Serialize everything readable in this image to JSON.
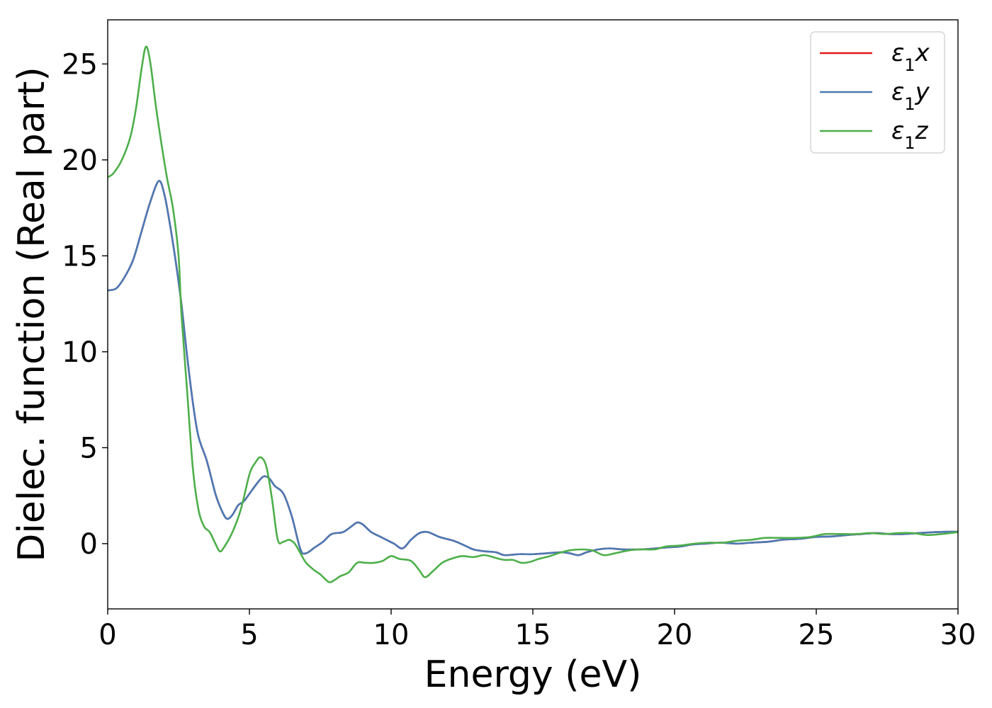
{
  "chart_data": {
    "type": "line",
    "title": "",
    "xlabel": "Energy (eV)",
    "ylabel": "Dielec. function (Real part)",
    "xlim": [
      0,
      30
    ],
    "ylim": [
      -3.4,
      27.3
    ],
    "xticks": [
      0,
      5,
      10,
      15,
      20,
      25,
      30
    ],
    "yticks": [
      0,
      5,
      10,
      15,
      20,
      25
    ],
    "grid": false,
    "legend": "top-right",
    "series": [
      {
        "name": "ε1x",
        "label_base": "ε",
        "label_sub": "1",
        "label_var": "x",
        "color": "#e41a1c",
        "points": [
          [
            0,
            13.2
          ],
          [
            0.3,
            13.3
          ],
          [
            0.6,
            13.9
          ],
          [
            0.9,
            14.8
          ],
          [
            1.2,
            16.3
          ],
          [
            1.5,
            17.8
          ],
          [
            1.8,
            18.9
          ],
          [
            2.0,
            18.2
          ],
          [
            2.2,
            16.6
          ],
          [
            2.4,
            14.7
          ],
          [
            2.6,
            12.5
          ],
          [
            2.8,
            9.8
          ],
          [
            3.0,
            7.4
          ],
          [
            3.2,
            5.6
          ],
          [
            3.5,
            4.3
          ],
          [
            3.8,
            2.6
          ],
          [
            4.0,
            1.8
          ],
          [
            4.2,
            1.3
          ],
          [
            4.4,
            1.5
          ],
          [
            4.6,
            2.0
          ],
          [
            4.8,
            2.2
          ],
          [
            5.0,
            2.6
          ],
          [
            5.3,
            3.2
          ],
          [
            5.5,
            3.5
          ],
          [
            5.7,
            3.4
          ],
          [
            5.9,
            3.0
          ],
          [
            6.2,
            2.6
          ],
          [
            6.5,
            1.4
          ],
          [
            6.8,
            -0.3
          ],
          [
            7.0,
            -0.5
          ],
          [
            7.3,
            -0.2
          ],
          [
            7.6,
            0.1
          ],
          [
            7.9,
            0.5
          ],
          [
            8.3,
            0.6
          ],
          [
            8.6,
            0.9
          ],
          [
            8.8,
            1.1
          ],
          [
            9.0,
            1.0
          ],
          [
            9.3,
            0.6
          ],
          [
            9.7,
            0.3
          ],
          [
            10.1,
            0.0
          ],
          [
            10.4,
            -0.25
          ],
          [
            10.7,
            0.2
          ],
          [
            11.0,
            0.55
          ],
          [
            11.3,
            0.6
          ],
          [
            11.7,
            0.35
          ],
          [
            12.2,
            0.15
          ],
          [
            12.6,
            -0.1
          ],
          [
            12.9,
            -0.3
          ],
          [
            13.3,
            -0.4
          ],
          [
            13.7,
            -0.45
          ],
          [
            14.0,
            -0.6
          ],
          [
            14.5,
            -0.55
          ],
          [
            15.0,
            -0.55
          ],
          [
            15.5,
            -0.5
          ],
          [
            16.0,
            -0.45
          ],
          [
            16.3,
            -0.5
          ],
          [
            16.6,
            -0.6
          ],
          [
            16.9,
            -0.45
          ],
          [
            17.3,
            -0.3
          ],
          [
            17.7,
            -0.25
          ],
          [
            18.2,
            -0.3
          ],
          [
            18.8,
            -0.3
          ],
          [
            19.3,
            -0.25
          ],
          [
            19.7,
            -0.2
          ],
          [
            20.2,
            -0.15
          ],
          [
            20.6,
            -0.05
          ],
          [
            21.1,
            0.0
          ],
          [
            21.6,
            0.05
          ],
          [
            22.2,
            0.0
          ],
          [
            22.7,
            0.05
          ],
          [
            23.3,
            0.1
          ],
          [
            23.8,
            0.2
          ],
          [
            24.4,
            0.25
          ],
          [
            25.0,
            0.35
          ],
          [
            25.6,
            0.38
          ],
          [
            26.1,
            0.45
          ],
          [
            26.6,
            0.5
          ],
          [
            27.1,
            0.55
          ],
          [
            27.6,
            0.5
          ],
          [
            28.1,
            0.5
          ],
          [
            28.6,
            0.55
          ],
          [
            29.2,
            0.6
          ],
          [
            29.6,
            0.62
          ],
          [
            30,
            0.62
          ]
        ]
      },
      {
        "name": "ε1y",
        "label_base": "ε",
        "label_sub": "1",
        "label_var": "y",
        "color": "#4a7ab5",
        "points": [
          [
            0,
            13.2
          ],
          [
            0.3,
            13.3
          ],
          [
            0.6,
            13.9
          ],
          [
            0.9,
            14.8
          ],
          [
            1.2,
            16.3
          ],
          [
            1.5,
            17.8
          ],
          [
            1.8,
            18.9
          ],
          [
            2.0,
            18.2
          ],
          [
            2.2,
            16.6
          ],
          [
            2.4,
            14.7
          ],
          [
            2.6,
            12.5
          ],
          [
            2.8,
            9.8
          ],
          [
            3.0,
            7.4
          ],
          [
            3.2,
            5.6
          ],
          [
            3.5,
            4.3
          ],
          [
            3.8,
            2.6
          ],
          [
            4.0,
            1.8
          ],
          [
            4.2,
            1.3
          ],
          [
            4.4,
            1.5
          ],
          [
            4.6,
            2.0
          ],
          [
            4.8,
            2.2
          ],
          [
            5.0,
            2.6
          ],
          [
            5.3,
            3.2
          ],
          [
            5.5,
            3.5
          ],
          [
            5.7,
            3.4
          ],
          [
            5.9,
            3.0
          ],
          [
            6.2,
            2.6
          ],
          [
            6.5,
            1.4
          ],
          [
            6.8,
            -0.3
          ],
          [
            7.0,
            -0.5
          ],
          [
            7.3,
            -0.2
          ],
          [
            7.6,
            0.1
          ],
          [
            7.9,
            0.5
          ],
          [
            8.3,
            0.6
          ],
          [
            8.6,
            0.9
          ],
          [
            8.8,
            1.1
          ],
          [
            9.0,
            1.0
          ],
          [
            9.3,
            0.6
          ],
          [
            9.7,
            0.3
          ],
          [
            10.1,
            0.0
          ],
          [
            10.4,
            -0.25
          ],
          [
            10.7,
            0.2
          ],
          [
            11.0,
            0.55
          ],
          [
            11.3,
            0.6
          ],
          [
            11.7,
            0.35
          ],
          [
            12.2,
            0.15
          ],
          [
            12.6,
            -0.1
          ],
          [
            12.9,
            -0.3
          ],
          [
            13.3,
            -0.4
          ],
          [
            13.7,
            -0.45
          ],
          [
            14.0,
            -0.6
          ],
          [
            14.5,
            -0.55
          ],
          [
            15.0,
            -0.55
          ],
          [
            15.5,
            -0.5
          ],
          [
            16.0,
            -0.45
          ],
          [
            16.3,
            -0.5
          ],
          [
            16.6,
            -0.6
          ],
          [
            16.9,
            -0.45
          ],
          [
            17.3,
            -0.3
          ],
          [
            17.7,
            -0.25
          ],
          [
            18.2,
            -0.3
          ],
          [
            18.8,
            -0.3
          ],
          [
            19.3,
            -0.25
          ],
          [
            19.7,
            -0.2
          ],
          [
            20.2,
            -0.15
          ],
          [
            20.6,
            -0.05
          ],
          [
            21.1,
            0.0
          ],
          [
            21.6,
            0.05
          ],
          [
            22.2,
            0.0
          ],
          [
            22.7,
            0.05
          ],
          [
            23.3,
            0.1
          ],
          [
            23.8,
            0.2
          ],
          [
            24.4,
            0.25
          ],
          [
            25.0,
            0.35
          ],
          [
            25.6,
            0.38
          ],
          [
            26.1,
            0.45
          ],
          [
            26.6,
            0.5
          ],
          [
            27.1,
            0.55
          ],
          [
            27.6,
            0.5
          ],
          [
            28.1,
            0.5
          ],
          [
            28.6,
            0.55
          ],
          [
            29.2,
            0.6
          ],
          [
            29.6,
            0.62
          ],
          [
            30,
            0.62
          ]
        ]
      },
      {
        "name": "ε1z",
        "label_base": "ε",
        "label_sub": "1",
        "label_var": "z",
        "color": "#4daf4a",
        "points": [
          [
            0,
            19.1
          ],
          [
            0.2,
            19.3
          ],
          [
            0.5,
            20.0
          ],
          [
            0.8,
            21.2
          ],
          [
            1.0,
            22.7
          ],
          [
            1.2,
            24.8
          ],
          [
            1.35,
            25.9
          ],
          [
            1.5,
            25.1
          ],
          [
            1.7,
            22.8
          ],
          [
            1.9,
            20.8
          ],
          [
            2.1,
            19.0
          ],
          [
            2.3,
            17.5
          ],
          [
            2.5,
            15.0
          ],
          [
            2.6,
            12.0
          ],
          [
            2.8,
            8.0
          ],
          [
            3.0,
            4.0
          ],
          [
            3.2,
            1.8
          ],
          [
            3.4,
            0.9
          ],
          [
            3.6,
            0.6
          ],
          [
            3.8,
            0.0
          ],
          [
            3.95,
            -0.4
          ],
          [
            4.1,
            -0.2
          ],
          [
            4.4,
            0.6
          ],
          [
            4.7,
            1.8
          ],
          [
            5.0,
            3.6
          ],
          [
            5.2,
            4.2
          ],
          [
            5.4,
            4.5
          ],
          [
            5.6,
            4.0
          ],
          [
            5.8,
            2.3
          ],
          [
            6.0,
            0.2
          ],
          [
            6.2,
            0.1
          ],
          [
            6.4,
            0.2
          ],
          [
            6.6,
            0.0
          ],
          [
            6.8,
            -0.5
          ],
          [
            7.0,
            -1.0
          ],
          [
            7.3,
            -1.4
          ],
          [
            7.5,
            -1.6
          ],
          [
            7.8,
            -2.0
          ],
          [
            8.0,
            -1.9
          ],
          [
            8.2,
            -1.7
          ],
          [
            8.5,
            -1.5
          ],
          [
            8.8,
            -1.0
          ],
          [
            9.1,
            -1.0
          ],
          [
            9.4,
            -1.0
          ],
          [
            9.7,
            -0.9
          ],
          [
            10.0,
            -0.65
          ],
          [
            10.3,
            -0.8
          ],
          [
            10.7,
            -0.9
          ],
          [
            11.0,
            -1.4
          ],
          [
            11.2,
            -1.75
          ],
          [
            11.5,
            -1.4
          ],
          [
            11.8,
            -1.0
          ],
          [
            12.1,
            -0.8
          ],
          [
            12.5,
            -0.65
          ],
          [
            12.9,
            -0.7
          ],
          [
            13.3,
            -0.6
          ],
          [
            13.7,
            -0.75
          ],
          [
            14.0,
            -0.85
          ],
          [
            14.3,
            -0.85
          ],
          [
            14.6,
            -1.0
          ],
          [
            14.9,
            -0.95
          ],
          [
            15.2,
            -0.8
          ],
          [
            15.6,
            -0.65
          ],
          [
            15.9,
            -0.5
          ],
          [
            16.3,
            -0.35
          ],
          [
            16.7,
            -0.3
          ],
          [
            17.1,
            -0.35
          ],
          [
            17.5,
            -0.6
          ],
          [
            17.9,
            -0.5
          ],
          [
            18.4,
            -0.35
          ],
          [
            18.8,
            -0.3
          ],
          [
            19.3,
            -0.3
          ],
          [
            19.7,
            -0.15
          ],
          [
            20.2,
            -0.1
          ],
          [
            20.7,
            0.0
          ],
          [
            21.2,
            0.05
          ],
          [
            21.7,
            0.05
          ],
          [
            22.2,
            0.15
          ],
          [
            22.7,
            0.2
          ],
          [
            23.2,
            0.3
          ],
          [
            23.7,
            0.3
          ],
          [
            24.3,
            0.3
          ],
          [
            24.8,
            0.35
          ],
          [
            25.3,
            0.5
          ],
          [
            25.8,
            0.5
          ],
          [
            26.4,
            0.5
          ],
          [
            26.9,
            0.55
          ],
          [
            27.4,
            0.5
          ],
          [
            27.9,
            0.55
          ],
          [
            28.4,
            0.55
          ],
          [
            28.9,
            0.45
          ],
          [
            29.4,
            0.5
          ],
          [
            30,
            0.6
          ]
        ]
      }
    ]
  }
}
